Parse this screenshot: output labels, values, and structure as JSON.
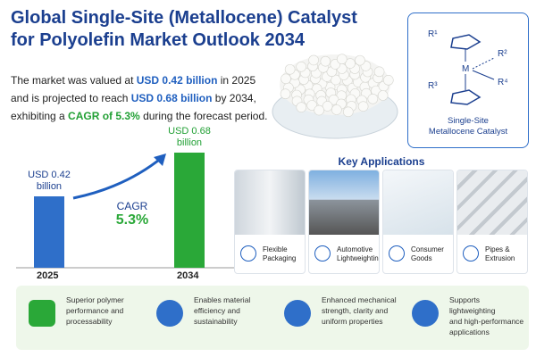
{
  "header": {
    "title_lines": [
      "Global Single-Site (Metallocene) Catalyst",
      "for Polyolefin Market Outlook 2034"
    ]
  },
  "summary": {
    "parts": [
      "The market was valued at ",
      "USD 0.42 billion",
      " in 2025",
      " and is projected to reach ",
      "USD 0.68 billion",
      " by 2034,",
      " exhibiting a ",
      "CAGR of 5.3%",
      " during the forecast period."
    ]
  },
  "bar_chart": {
    "bars": [
      {
        "label": "2025",
        "value": 0.42,
        "value_label_lines": [
          "USD 0.42",
          "billion"
        ],
        "color": "#2f6fc9"
      },
      {
        "label": "2034",
        "value": 0.68,
        "value_label_lines": [
          "USD 0.68",
          "billion"
        ],
        "color": "#2aa838"
      }
    ],
    "cagr_label": "CAGR",
    "cagr_value": "5.3%"
  },
  "diagram": {
    "substituents": [
      "R¹",
      "R²",
      "R³",
      "R⁴"
    ],
    "metal": "M",
    "caption_lines": [
      "Single-Site",
      "Metallocene Catalyst"
    ]
  },
  "applications": {
    "title": "Key Applications",
    "items": [
      {
        "label_lines": [
          "Flexible",
          "Packaging"
        ]
      },
      {
        "label_lines": [
          "Automotive",
          "Lightweighting"
        ]
      },
      {
        "label_lines": [
          "Consumer",
          "Goods"
        ]
      },
      {
        "label_lines": [
          "Pipes &",
          "Extrusion"
        ]
      }
    ]
  },
  "benefits": [
    {
      "lines": [
        "Superior polymer",
        "performance and",
        "processability"
      ]
    },
    {
      "lines": [
        "Enables material",
        "efficiency and",
        "sustainability"
      ]
    },
    {
      "lines": [
        "Enhanced mechanical",
        "strength, clarity and",
        "uniform properties"
      ]
    },
    {
      "lines": [
        "Supports lightweighting",
        "and high-performance",
        "applications"
      ]
    }
  ]
}
